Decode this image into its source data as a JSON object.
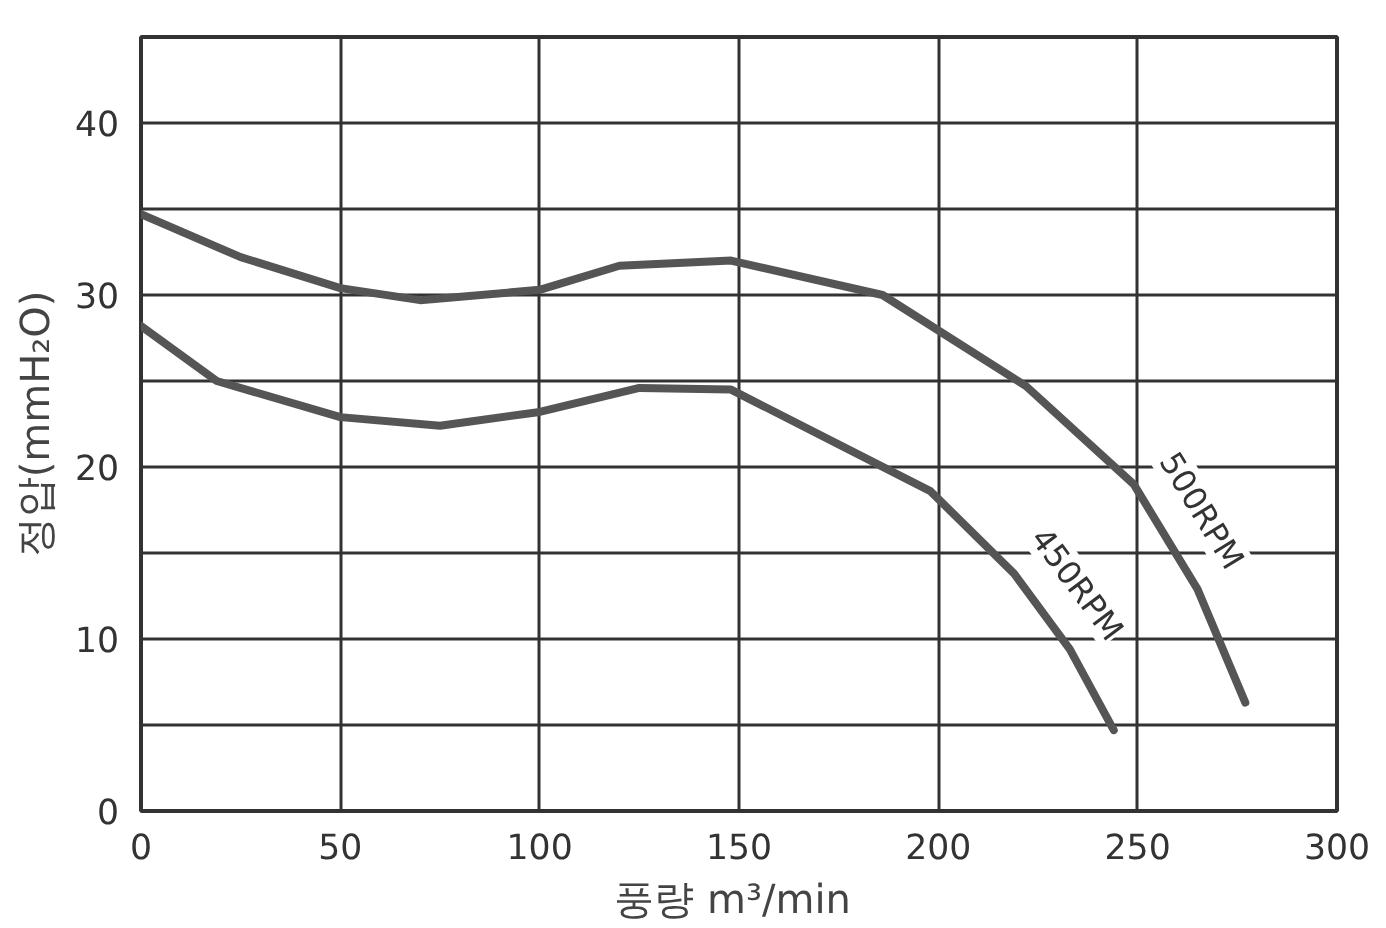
{
  "chart_data": {
    "type": "line",
    "xlabel": "풍량  m³/min",
    "ylabel": "정압(mmH₂O)",
    "xlim": [
      0,
      300
    ],
    "ylim": [
      0,
      45
    ],
    "xticks": [
      0,
      50,
      100,
      150,
      200,
      250,
      300
    ],
    "yticks": [
      0,
      {
        "value": 5,
        "label": null
      },
      10,
      {
        "value": 15,
        "label": null
      },
      20,
      {
        "value": 25,
        "label": null
      },
      30,
      {
        "value": 35,
        "label": null
      },
      40,
      {
        "value": 45,
        "label": null
      }
    ],
    "grid": true,
    "line_style": "solid",
    "series": [
      {
        "name": "500RPM",
        "color": "#555555",
        "x": [
          0,
          25,
          50,
          70,
          100,
          120,
          148,
          186,
          222,
          249,
          265,
          277
        ],
        "values": [
          34.7,
          32.2,
          30.4,
          29.7,
          30.3,
          31.7,
          32,
          30,
          24.7,
          19,
          12.9,
          6.3
        ]
      },
      {
        "name": "450RPM",
        "color": "#555555",
        "x": [
          0,
          19,
          50,
          75,
          100,
          125,
          148,
          198,
          219,
          233,
          244
        ],
        "values": [
          28.2,
          25,
          22.9,
          22.4,
          23.2,
          24.6,
          24.5,
          18.6,
          13.8,
          9.4,
          4.7
        ]
      }
    ]
  }
}
